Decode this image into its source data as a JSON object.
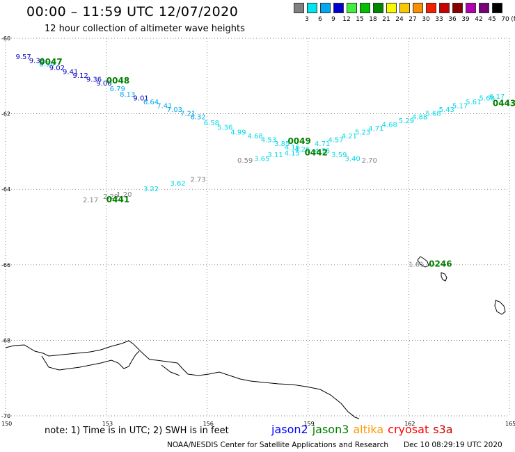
{
  "title": "00:00 – 11:59 UTC 12/07/2020",
  "subtitle": "12 hour collection of altimeter wave heights",
  "legend": {
    "unit": "(ft)",
    "items": [
      {
        "label": "3",
        "color": "#808080"
      },
      {
        "label": "6",
        "color": "#00e5ee"
      },
      {
        "label": "9",
        "color": "#00a8f0"
      },
      {
        "label": "12",
        "color": "#0000d0"
      },
      {
        "label": "15",
        "color": "#40f040"
      },
      {
        "label": "18",
        "color": "#00c000"
      },
      {
        "label": "21",
        "color": "#008800"
      },
      {
        "label": "24",
        "color": "#f8f800"
      },
      {
        "label": "27",
        "color": "#f8c800"
      },
      {
        "label": "30",
        "color": "#f89000"
      },
      {
        "label": "33",
        "color": "#f02000"
      },
      {
        "label": "36",
        "color": "#c80000"
      },
      {
        "label": "39",
        "color": "#880000"
      },
      {
        "label": "42",
        "color": "#b000b0"
      },
      {
        "label": "45",
        "color": "#780078"
      },
      {
        "label": "70",
        "color": "#000000"
      }
    ]
  },
  "axes": {
    "lat_labels": [
      "-60",
      "-62",
      "-64",
      "-66",
      "-68",
      "-70"
    ],
    "lon_labels": [
      "150",
      "153",
      "156",
      "159",
      "162",
      "165"
    ]
  },
  "tracks": [
    {
      "label": "0047",
      "color": "#008000",
      "lon": 151.0,
      "lat": -60.7
    },
    {
      "label": "0048",
      "color": "#008000",
      "lon": 153.0,
      "lat": -61.2
    },
    {
      "label": "0049",
      "color": "#008000",
      "lon": 158.4,
      "lat": -62.8
    },
    {
      "label": "0442",
      "color": "#008000",
      "lon": 158.9,
      "lat": -63.1
    },
    {
      "label": "0441",
      "color": "#008000",
      "lon": 153.0,
      "lat": -64.35
    },
    {
      "label": "0443",
      "color": "#008000",
      "lon": 164.5,
      "lat": -61.8
    },
    {
      "label": "0246",
      "color": "#008000",
      "lon": 162.6,
      "lat": -66.05
    }
  ],
  "observations": [
    {
      "v": "9.57",
      "c": "#0000c0",
      "lon": 150.3,
      "lat": -60.55
    },
    {
      "v": "9.39",
      "c": "#0000c0",
      "lon": 150.7,
      "lat": -60.65
    },
    {
      "v": "8.90",
      "c": "#00a8f0",
      "lon": 151.0,
      "lat": -60.75
    },
    {
      "v": "9.02",
      "c": "#0000c0",
      "lon": 151.3,
      "lat": -60.85
    },
    {
      "v": "9.41",
      "c": "#0000c0",
      "lon": 151.7,
      "lat": -60.95
    },
    {
      "v": "9.12",
      "c": "#0000c0",
      "lon": 152.0,
      "lat": -61.05
    },
    {
      "v": "9.36",
      "c": "#0000c0",
      "lon": 152.4,
      "lat": -61.15
    },
    {
      "v": "9.06",
      "c": "#0000c0",
      "lon": 152.7,
      "lat": -61.25
    },
    {
      "v": "6.79",
      "c": "#00a8f0",
      "lon": 153.1,
      "lat": -61.4
    },
    {
      "v": "8.13",
      "c": "#00a8f0",
      "lon": 153.4,
      "lat": -61.55
    },
    {
      "v": "9.01",
      "c": "#0000c0",
      "lon": 153.8,
      "lat": -61.65
    },
    {
      "v": "6.64",
      "c": "#00a8f0",
      "lon": 154.1,
      "lat": -61.75
    },
    {
      "v": "7.41",
      "c": "#00a8f0",
      "lon": 154.5,
      "lat": -61.85
    },
    {
      "v": "7.03",
      "c": "#00a8f0",
      "lon": 154.8,
      "lat": -61.95
    },
    {
      "v": "7.21",
      "c": "#00a8f0",
      "lon": 155.2,
      "lat": -62.05
    },
    {
      "v": "6.32",
      "c": "#00a8f0",
      "lon": 155.5,
      "lat": -62.15
    },
    {
      "v": "6.58",
      "c": "#00d8e8",
      "lon": 155.9,
      "lat": -62.3
    },
    {
      "v": "5.36",
      "c": "#00d8e8",
      "lon": 156.3,
      "lat": -62.42
    },
    {
      "v": "4.99",
      "c": "#00d8e8",
      "lon": 156.7,
      "lat": -62.55
    },
    {
      "v": "4.68",
      "c": "#00d8e8",
      "lon": 157.2,
      "lat": -62.65
    },
    {
      "v": "4.53",
      "c": "#00d8e8",
      "lon": 157.6,
      "lat": -62.75
    },
    {
      "v": "3.85",
      "c": "#00d8e8",
      "lon": 158.0,
      "lat": -62.85
    },
    {
      "v": "4.16",
      "c": "#00d8e8",
      "lon": 158.3,
      "lat": -62.95
    },
    {
      "v": "4.26",
      "c": "#00d8e8",
      "lon": 158.6,
      "lat": -63.0
    },
    {
      "v": "4.71",
      "c": "#00d8e8",
      "lon": 159.2,
      "lat": -62.85
    },
    {
      "v": "4.57",
      "c": "#00d8e8",
      "lon": 159.6,
      "lat": -62.75
    },
    {
      "v": "4.21",
      "c": "#00d8e8",
      "lon": 160.0,
      "lat": -62.65
    },
    {
      "v": "5.23",
      "c": "#00d8e8",
      "lon": 160.4,
      "lat": -62.55
    },
    {
      "v": "4.71",
      "c": "#00d8e8",
      "lon": 160.8,
      "lat": -62.45
    },
    {
      "v": "4.68",
      "c": "#00d8e8",
      "lon": 161.2,
      "lat": -62.35
    },
    {
      "v": "5.29",
      "c": "#00d8e8",
      "lon": 161.7,
      "lat": -62.25
    },
    {
      "v": "4.88",
      "c": "#00d8e8",
      "lon": 162.1,
      "lat": -62.15
    },
    {
      "v": "5.68",
      "c": "#00d8e8",
      "lon": 162.5,
      "lat": -62.05
    },
    {
      "v": "5.43",
      "c": "#00d8e8",
      "lon": 162.9,
      "lat": -61.95
    },
    {
      "v": "5.17",
      "c": "#00d8e8",
      "lon": 163.3,
      "lat": -61.85
    },
    {
      "v": "5.61",
      "c": "#00d8e8",
      "lon": 163.7,
      "lat": -61.75
    },
    {
      "v": "5.68",
      "c": "#00d8e8",
      "lon": 164.1,
      "lat": -61.65
    },
    {
      "v": "6.17",
      "c": "#00d8e8",
      "lon": 164.4,
      "lat": -61.6
    },
    {
      "v": "0.59",
      "c": "#808080",
      "lon": 156.9,
      "lat": -63.3
    },
    {
      "v": "3.65",
      "c": "#00d8e8",
      "lon": 157.4,
      "lat": -63.25
    },
    {
      "v": "3.11",
      "c": "#00d8e8",
      "lon": 157.8,
      "lat": -63.15
    },
    {
      "v": "4.15",
      "c": "#00d8e8",
      "lon": 158.3,
      "lat": -63.1
    },
    {
      "v": "4.75",
      "c": "#00d8e8",
      "lon": 159.2,
      "lat": -63.05
    },
    {
      "v": "3.59",
      "c": "#00d8e8",
      "lon": 159.7,
      "lat": -63.15
    },
    {
      "v": "3.40",
      "c": "#00d8e8",
      "lon": 160.1,
      "lat": -63.25
    },
    {
      "v": "2.70",
      "c": "#808080",
      "lon": 160.6,
      "lat": -63.3
    },
    {
      "v": "2.17",
      "c": "#808080",
      "lon": 152.3,
      "lat": -64.35
    },
    {
      "v": "2.29",
      "c": "#808080",
      "lon": 152.9,
      "lat": -64.25
    },
    {
      "v": "1.20",
      "c": "#808080",
      "lon": 153.3,
      "lat": -64.2
    },
    {
      "v": "3.22",
      "c": "#00d8e8",
      "lon": 154.1,
      "lat": -64.05
    },
    {
      "v": "3.62",
      "c": "#00d8e8",
      "lon": 154.9,
      "lat": -63.9
    },
    {
      "v": "2.73",
      "c": "#808080",
      "lon": 155.5,
      "lat": -63.8
    },
    {
      "v": "1.61",
      "c": "#808080",
      "lon": 162.0,
      "lat": -66.05
    }
  ],
  "footnote": "note:  1) Time is in UTC;  2) SWH is in feet",
  "satellites": [
    {
      "name": "jason2",
      "color": "#0000ff"
    },
    {
      "name": "jason3",
      "color": "#008000"
    },
    {
      "name": "altika",
      "color": "#ff9900"
    },
    {
      "name": "cryosat",
      "color": "#ff0000"
    },
    {
      "name": "s3a",
      "color": "#cc0000"
    }
  ],
  "credit": "NOAA/NESDIS Center for Satellite Applications and Research",
  "timestamp": "Dec 10 08:29:19 UTC 2020"
}
